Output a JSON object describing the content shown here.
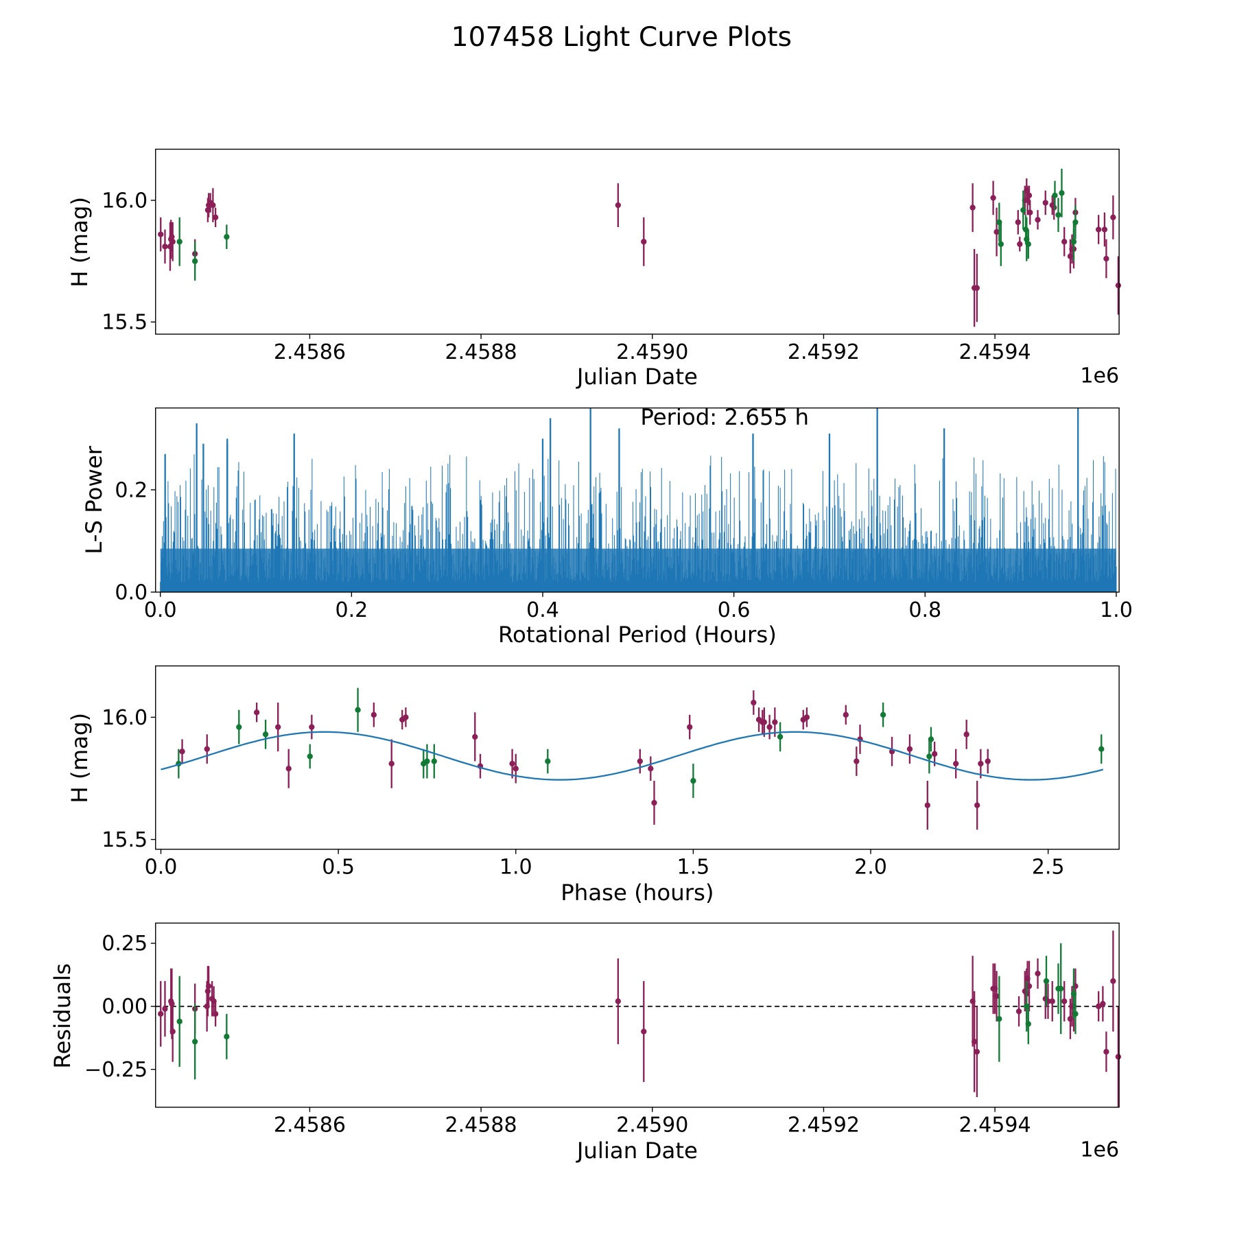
{
  "title": "107458 Light Curve Plots",
  "colors": {
    "filter_a": "#8b1f57",
    "filter_b": "#127a35",
    "model": "#1f77b4",
    "periodogram": "#1f77b4"
  },
  "chart_data": [
    {
      "type": "scatter",
      "id": "lightcurve",
      "xlabel": "Julian Date",
      "ylabel": "H (mag)",
      "x_offset_label": "1e6",
      "xlim": [
        2458420,
        2459545
      ],
      "ylim": [
        15.45,
        16.21
      ],
      "y_inverted": false,
      "xticks": [
        2458600,
        2458800,
        2459000,
        2459200,
        2459400
      ],
      "xtick_labels": [
        "2.4586",
        "2.4588",
        "2.4590",
        "2.4592",
        "2.4594"
      ],
      "yticks": [
        15.5,
        16.0
      ],
      "ytick_labels": [
        "15.5",
        "16.0"
      ],
      "series": [
        {
          "name": "filter_a",
          "points": [
            [
              2458426,
              15.86,
              0.07
            ],
            [
              2458431,
              15.81,
              0.07
            ],
            [
              2458437,
              15.81,
              0.1
            ],
            [
              2458438,
              15.84,
              0.08
            ],
            [
              2458439,
              15.85,
              0.06
            ],
            [
              2458440,
              15.83,
              0.08
            ],
            [
              2458466,
              15.78,
              0.06
            ],
            [
              2458481,
              15.96,
              0.05
            ],
            [
              2458482,
              15.98,
              0.05
            ],
            [
              2458484,
              15.99,
              0.04
            ],
            [
              2458487,
              15.98,
              0.07
            ],
            [
              2458490,
              15.93,
              0.04
            ],
            [
              2458960,
              15.98,
              0.09
            ],
            [
              2458990,
              15.83,
              0.1
            ],
            [
              2459374,
              15.97,
              0.1
            ],
            [
              2459376,
              15.64,
              0.16
            ],
            [
              2459379,
              15.64,
              0.14
            ],
            [
              2459398,
              16.01,
              0.07
            ],
            [
              2459402,
              15.87,
              0.1
            ],
            [
              2459427,
              15.91,
              0.05
            ],
            [
              2459429,
              15.82,
              0.03
            ],
            [
              2459435,
              16.0,
              0.06
            ],
            [
              2459437,
              16.04,
              0.05
            ],
            [
              2459438,
              16.0,
              0.06
            ],
            [
              2459440,
              16.02,
              0.04
            ],
            [
              2459441,
              15.95,
              0.05
            ],
            [
              2459450,
              15.92,
              0.04
            ],
            [
              2459459,
              15.99,
              0.05
            ],
            [
              2459467,
              15.98,
              0.04
            ],
            [
              2459469,
              15.97,
              0.05
            ],
            [
              2459481,
              15.83,
              0.06
            ],
            [
              2459488,
              15.77,
              0.07
            ],
            [
              2459490,
              15.8,
              0.06
            ],
            [
              2459492,
              15.8,
              0.08
            ],
            [
              2459494,
              15.95,
              0.06
            ],
            [
              2459521,
              15.88,
              0.06
            ],
            [
              2459528,
              15.88,
              0.07
            ],
            [
              2459530,
              15.76,
              0.08
            ],
            [
              2459538,
              15.93,
              0.09
            ],
            [
              2459544,
              15.65,
              0.12
            ]
          ]
        },
        {
          "name": "filter_b",
          "points": [
            [
              2458448,
              15.83,
              0.1
            ],
            [
              2458466,
              15.75,
              0.08
            ],
            [
              2458503,
              15.85,
              0.05
            ],
            [
              2459405,
              15.91,
              0.08
            ],
            [
              2459407,
              15.82,
              0.09
            ],
            [
              2459433,
              15.96,
              0.08
            ],
            [
              2459436,
              15.88,
              0.06
            ],
            [
              2459437,
              15.84,
              0.09
            ],
            [
              2459439,
              15.82,
              0.06
            ],
            [
              2459470,
              16.02,
              0.06
            ],
            [
              2459474,
              15.94,
              0.07
            ],
            [
              2459478,
              16.03,
              0.1
            ],
            [
              2459492,
              15.83,
              0.08
            ],
            [
              2459494,
              15.91,
              0.07
            ]
          ]
        }
      ]
    },
    {
      "type": "line",
      "id": "periodogram",
      "xlabel": "Rotational Period (Hours)",
      "ylabel": "L-S Power",
      "xlim": [
        -0.005,
        1.003
      ],
      "ylim": [
        0.0,
        0.36
      ],
      "xticks": [
        0.0,
        0.2,
        0.4,
        0.6,
        0.8,
        1.0
      ],
      "xtick_labels": [
        "0.0",
        "0.2",
        "0.4",
        "0.6",
        "0.8",
        "1.0"
      ],
      "yticks": [
        0.0,
        0.2
      ],
      "ytick_labels": [
        "0.0",
        "0.2"
      ],
      "annotation": "Period: 2.655 h",
      "notable_peaks": [
        [
          0.005,
          0.27
        ],
        [
          0.038,
          0.33
        ],
        [
          0.045,
          0.29
        ],
        [
          0.07,
          0.3
        ],
        [
          0.07,
          0.29
        ],
        [
          0.14,
          0.31
        ],
        [
          0.4,
          0.3
        ],
        [
          0.408,
          0.34
        ],
        [
          0.45,
          0.36
        ],
        [
          0.48,
          0.32
        ],
        [
          0.62,
          0.31
        ],
        [
          0.7,
          0.31
        ],
        [
          0.75,
          0.37
        ],
        [
          0.82,
          0.32
        ],
        [
          0.96,
          0.36
        ]
      ],
      "typical_power_range": [
        0.0,
        0.2
      ]
    },
    {
      "type": "scatter",
      "id": "phased",
      "xlabel": "Phase (hours)",
      "ylabel": "H (mag)",
      "xlim": [
        -0.015,
        2.7
      ],
      "ylim": [
        15.46,
        16.21
      ],
      "xticks": [
        0.0,
        0.5,
        1.0,
        1.5,
        2.0,
        2.5
      ],
      "xtick_labels": [
        "0.0",
        "0.5",
        "1.0",
        "1.5",
        "2.0",
        "2.5"
      ],
      "yticks": [
        15.5,
        16.0
      ],
      "ytick_labels": [
        "15.5",
        "16.0"
      ],
      "model": {
        "mean": 15.842,
        "amplitude": 0.098,
        "period_hours": 1.3275,
        "peak_phase": 0.46
      },
      "series": [
        {
          "name": "filter_a",
          "points": [
            [
              0.06,
              15.86,
              0.05
            ],
            [
              0.13,
              15.87,
              0.06
            ],
            [
              0.27,
              16.02,
              0.04
            ],
            [
              0.33,
              15.96,
              0.1
            ],
            [
              0.36,
              15.79,
              0.08
            ],
            [
              0.425,
              15.96,
              0.05
            ],
            [
              0.6,
              16.01,
              0.05
            ],
            [
              0.65,
              15.81,
              0.1
            ],
            [
              0.68,
              15.99,
              0.04
            ],
            [
              0.69,
              16.0,
              0.04
            ],
            [
              0.885,
              15.92,
              0.1
            ],
            [
              0.9,
              15.8,
              0.05
            ],
            [
              0.99,
              15.81,
              0.06
            ],
            [
              1.0,
              15.79,
              0.06
            ],
            [
              1.35,
              15.82,
              0.05
            ],
            [
              1.38,
              15.79,
              0.05
            ],
            [
              1.39,
              15.65,
              0.09
            ],
            [
              1.49,
              15.96,
              0.05
            ],
            [
              1.67,
              16.06,
              0.05
            ],
            [
              1.685,
              15.99,
              0.05
            ],
            [
              1.695,
              15.98,
              0.05
            ],
            [
              1.7,
              15.98,
              0.06
            ],
            [
              1.715,
              15.96,
              0.05
            ],
            [
              1.73,
              15.98,
              0.06
            ],
            [
              1.81,
              15.99,
              0.04
            ],
            [
              1.82,
              16.0,
              0.04
            ],
            [
              1.93,
              16.01,
              0.04
            ],
            [
              1.96,
              15.82,
              0.06
            ],
            [
              1.97,
              15.91,
              0.06
            ],
            [
              2.06,
              15.86,
              0.06
            ],
            [
              2.11,
              15.87,
              0.06
            ],
            [
              2.16,
              15.64,
              0.1
            ],
            [
              2.18,
              15.85,
              0.05
            ],
            [
              2.24,
              15.81,
              0.06
            ],
            [
              2.27,
              15.93,
              0.06
            ],
            [
              2.3,
              15.64,
              0.1
            ],
            [
              2.31,
              15.81,
              0.06
            ],
            [
              2.33,
              15.82,
              0.05
            ]
          ]
        },
        {
          "name": "filter_b",
          "points": [
            [
              0.05,
              15.81,
              0.06
            ],
            [
              0.22,
              15.96,
              0.07
            ],
            [
              0.295,
              15.93,
              0.06
            ],
            [
              0.42,
              15.84,
              0.05
            ],
            [
              0.555,
              16.03,
              0.09
            ],
            [
              0.74,
              15.81,
              0.06
            ],
            [
              0.75,
              15.82,
              0.07
            ],
            [
              0.77,
              15.82,
              0.07
            ],
            [
              1.09,
              15.82,
              0.05
            ],
            [
              1.5,
              15.74,
              0.07
            ],
            [
              1.745,
              15.92,
              0.06
            ],
            [
              2.035,
              16.01,
              0.05
            ],
            [
              2.165,
              15.84,
              0.07
            ],
            [
              2.17,
              15.91,
              0.05
            ],
            [
              2.65,
              15.87,
              0.06
            ]
          ]
        }
      ]
    },
    {
      "type": "scatter",
      "id": "residuals",
      "xlabel": "Julian Date",
      "ylabel": "Residuals",
      "x_offset_label": "1e6",
      "xlim": [
        2458420,
        2459545
      ],
      "ylim": [
        -0.4,
        0.33
      ],
      "xticks": [
        2458600,
        2458800,
        2459000,
        2459200,
        2459400
      ],
      "xtick_labels": [
        "2.4586",
        "2.4588",
        "2.4590",
        "2.4592",
        "2.4594"
      ],
      "yticks": [
        -0.25,
        0.0,
        0.25
      ],
      "ytick_labels": [
        "−0.25",
        "0.00",
        "0.25"
      ],
      "reference_line": 0.0,
      "series": [
        {
          "name": "filter_a",
          "points": [
            [
              2458426,
              -0.03,
              0.13
            ],
            [
              2458431,
              -0.01,
              0.11
            ],
            [
              2458438,
              0.02,
              0.13
            ],
            [
              2458439,
              0.01,
              0.14
            ],
            [
              2458440,
              -0.1,
              0.12
            ],
            [
              2458466,
              -0.01,
              0.1
            ],
            [
              2458480,
              0.0,
              0.1
            ],
            [
              2458481,
              0.06,
              0.1
            ],
            [
              2458482,
              0.08,
              0.08
            ],
            [
              2458486,
              0.03,
              0.07
            ],
            [
              2458488,
              0.02,
              0.06
            ],
            [
              2458490,
              -0.03,
              0.05
            ],
            [
              2458960,
              0.02,
              0.17
            ],
            [
              2458990,
              -0.1,
              0.2
            ],
            [
              2459374,
              0.02,
              0.18
            ],
            [
              2459376,
              -0.14,
              0.2
            ],
            [
              2459379,
              -0.18,
              0.18
            ],
            [
              2459398,
              0.07,
              0.1
            ],
            [
              2459400,
              0.07,
              0.1
            ],
            [
              2459402,
              0.04,
              0.1
            ],
            [
              2459428,
              -0.02,
              0.06
            ],
            [
              2459435,
              0.06,
              0.08
            ],
            [
              2459437,
              0.05,
              0.1
            ],
            [
              2459438,
              0.11,
              0.07
            ],
            [
              2459440,
              0.08,
              0.1
            ],
            [
              2459450,
              0.13,
              0.06
            ],
            [
              2459459,
              0.03,
              0.08
            ],
            [
              2459462,
              0.02,
              0.07
            ],
            [
              2459467,
              0.02,
              0.08
            ],
            [
              2459481,
              0.02,
              0.08
            ],
            [
              2459488,
              -0.05,
              0.08
            ],
            [
              2459490,
              0.0,
              0.08
            ],
            [
              2459492,
              0.0,
              0.1
            ],
            [
              2459494,
              0.08,
              0.07
            ],
            [
              2459521,
              0.0,
              0.06
            ],
            [
              2459526,
              0.01,
              0.07
            ],
            [
              2459530,
              -0.18,
              0.08
            ],
            [
              2459538,
              0.1,
              0.2
            ],
            [
              2459544,
              -0.2,
              0.2
            ]
          ]
        },
        {
          "name": "filter_b",
          "points": [
            [
              2458448,
              -0.06,
              0.18
            ],
            [
              2458466,
              -0.14,
              0.15
            ],
            [
              2458503,
              -0.12,
              0.09
            ],
            [
              2459405,
              -0.05,
              0.17
            ],
            [
              2459437,
              -0.0,
              0.1
            ],
            [
              2459439,
              -0.07,
              0.08
            ],
            [
              2459460,
              0.1,
              0.1
            ],
            [
              2459474,
              0.07,
              0.1
            ],
            [
              2459477,
              0.07,
              0.18
            ],
            [
              2459492,
              0.05,
              0.1
            ],
            [
              2459494,
              -0.03,
              0.08
            ]
          ]
        }
      ]
    }
  ]
}
